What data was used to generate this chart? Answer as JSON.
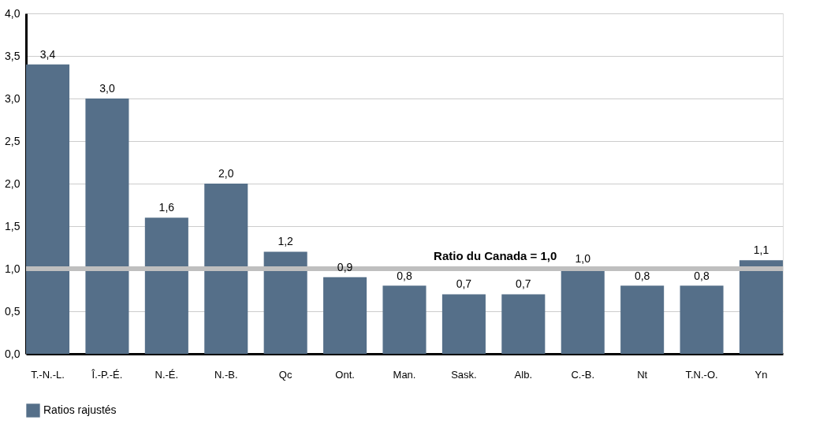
{
  "chart_data": {
    "type": "bar",
    "categories": [
      "T.-N.-L.",
      "Î.-P.-É.",
      "N.-É.",
      "N.-B.",
      "Qc",
      "Ont.",
      "Man.",
      "Sask.",
      "Alb.",
      "C.-B.",
      "Nt",
      "T.N.-O.",
      "Yn"
    ],
    "series": [
      {
        "name": "Ratios rajustés",
        "color": "#556f89",
        "values": [
          3.4,
          3.0,
          1.6,
          2.0,
          1.2,
          0.9,
          0.8,
          0.7,
          0.7,
          1.0,
          0.8,
          0.8,
          1.1
        ],
        "value_labels": [
          "3,4",
          "3,0",
          "1,6",
          "2,0",
          "1,2",
          "0,9",
          "0,8",
          "0,7",
          "0,7",
          "1,0",
          "0,8",
          "0,8",
          "1,1"
        ]
      }
    ],
    "ylim": [
      0,
      4
    ],
    "yticks": [
      {
        "value": 0,
        "label": "0,0"
      },
      {
        "value": 0.5,
        "label": "0,5"
      },
      {
        "value": 1,
        "label": "1,0"
      },
      {
        "value": 1.5,
        "label": "1,5"
      },
      {
        "value": 2,
        "label": "2,0"
      },
      {
        "value": 2.5,
        "label": "2,5"
      },
      {
        "value": 3,
        "label": "3,0"
      },
      {
        "value": 3.5,
        "label": "3,5"
      },
      {
        "value": 4,
        "label": "4,0"
      }
    ],
    "ref_lines": [
      {
        "axis": "y",
        "value": 1.0,
        "label": "Ratio du Canada = 1,0",
        "color": "#bfbfbf"
      }
    ],
    "grid": "y",
    "legend": "bottom"
  }
}
